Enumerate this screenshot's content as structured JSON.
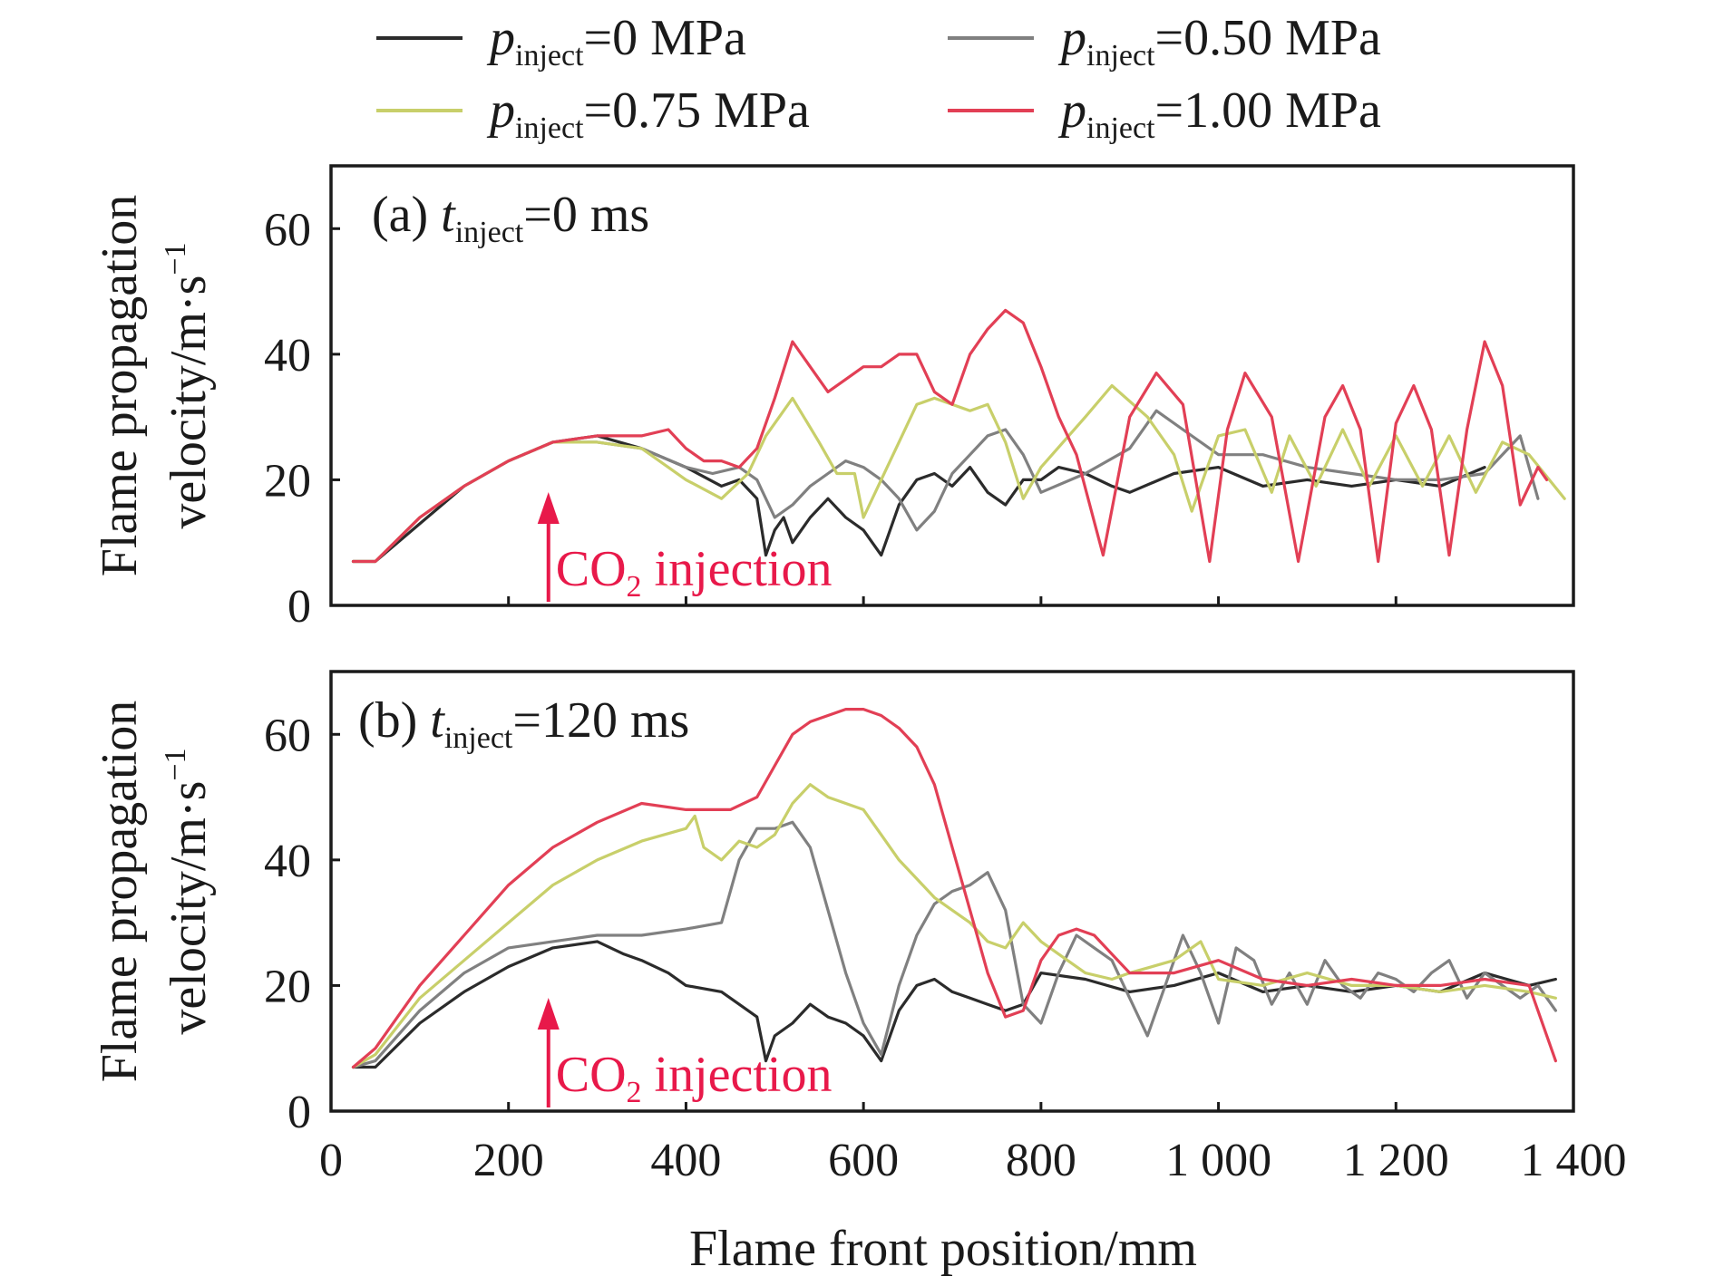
{
  "chart_data": {
    "type": "line",
    "xlabel": "Flame front position/mm",
    "ylabel_line1": "Flame propagation",
    "ylabel_line2": "velocity/m·s",
    "ylabel_exp": "−1",
    "xlim": [
      0,
      1400
    ],
    "ylim": [
      0,
      70
    ],
    "xticks": [
      0,
      200,
      400,
      600,
      800,
      1000,
      1200,
      1400
    ],
    "xtick_labels": [
      "0",
      "200",
      "400",
      "600",
      "800",
      "1 000",
      "1 200",
      "1 400"
    ],
    "yticks": [
      0,
      20,
      40,
      60
    ],
    "ytick_labels": [
      "0",
      "20",
      "40",
      "60"
    ],
    "legend_placement": "top",
    "grid": false,
    "legend": [
      {
        "p": "p",
        "sub": "inject",
        "rest": "=0 MPa",
        "color": "#2b2b2b"
      },
      {
        "p": "p",
        "sub": "inject",
        "rest": "=0.50 MPa",
        "color": "#808080"
      },
      {
        "p": "p",
        "sub": "inject",
        "rest": "=0.75 MPa",
        "color": "#c8cf6a"
      },
      {
        "p": "p",
        "sub": "inject",
        "rest": "=1.00 MPa",
        "color": "#e23f55"
      }
    ],
    "annotation": {
      "text": "CO",
      "sub": "2",
      "rest": " injection",
      "x": 245,
      "color": "#e8194a"
    },
    "panels": [
      {
        "label": "(a) ",
        "label_t": "t",
        "label_sub": "inject",
        "label_rest": "=0 ms",
        "series": [
          {
            "name": "pinject=0 MPa",
            "color": "#2b2b2b",
            "x": [
              25,
              50,
              100,
              150,
              200,
              250,
              300,
              350,
              400,
              440,
              460,
              480,
              490,
              500,
              510,
              520,
              540,
              560,
              580,
              600,
              620,
              640,
              660,
              680,
              700,
              720,
              740,
              760,
              780,
              800,
              820,
              850,
              880,
              900,
              950,
              1000,
              1050,
              1100,
              1150,
              1200,
              1250,
              1300
            ],
            "y": [
              7,
              7,
              13,
              19,
              23,
              26,
              27,
              25,
              22,
              19,
              20,
              17,
              8,
              12,
              14,
              10,
              14,
              17,
              14,
              12,
              8,
              16,
              20,
              21,
              19,
              22,
              18,
              16,
              20,
              20,
              22,
              21,
              19,
              18,
              21,
              22,
              19,
              20,
              19,
              20,
              19,
              22
            ]
          },
          {
            "name": "pinject=0.50 MPa",
            "color": "#808080",
            "x": [
              25,
              50,
              100,
              150,
              200,
              250,
              300,
              350,
              400,
              430,
              460,
              480,
              500,
              520,
              540,
              560,
              580,
              600,
              620,
              640,
              660,
              680,
              700,
              720,
              740,
              760,
              780,
              800,
              850,
              900,
              930,
              960,
              1000,
              1050,
              1100,
              1150,
              1200,
              1250,
              1300,
              1340,
              1360
            ],
            "y": [
              7,
              7,
              14,
              19,
              23,
              26,
              26,
              25,
              22,
              21,
              22,
              20,
              14,
              16,
              19,
              21,
              23,
              22,
              20,
              17,
              12,
              15,
              21,
              24,
              27,
              28,
              24,
              18,
              21,
              25,
              31,
              28,
              24,
              24,
              22,
              21,
              20,
              20,
              21,
              27,
              17
            ]
          },
          {
            "name": "pinject=0.75 MPa",
            "color": "#c8cf6a",
            "x": [
              25,
              50,
              100,
              150,
              200,
              250,
              300,
              350,
              400,
              440,
              470,
              490,
              520,
              550,
              570,
              590,
              600,
              620,
              640,
              660,
              680,
              700,
              720,
              740,
              760,
              780,
              800,
              850,
              880,
              920,
              950,
              970,
              1000,
              1030,
              1060,
              1080,
              1110,
              1140,
              1170,
              1200,
              1230,
              1260,
              1290,
              1320,
              1350,
              1390
            ],
            "y": [
              7,
              7,
              14,
              19,
              23,
              26,
              26,
              25,
              20,
              17,
              21,
              27,
              33,
              26,
              21,
              21,
              14,
              20,
              26,
              32,
              33,
              32,
              31,
              32,
              26,
              17,
              22,
              30,
              35,
              30,
              24,
              15,
              27,
              28,
              18,
              27,
              19,
              28,
              19,
              27,
              19,
              27,
              18,
              26,
              24,
              17
            ]
          },
          {
            "name": "pinject=1.00 MPa",
            "color": "#e23f55",
            "x": [
              25,
              50,
              100,
              150,
              200,
              250,
              300,
              350,
              380,
              400,
              420,
              440,
              460,
              480,
              500,
              520,
              540,
              560,
              580,
              600,
              620,
              640,
              660,
              680,
              700,
              720,
              740,
              760,
              780,
              800,
              820,
              840,
              870,
              900,
              930,
              960,
              990,
              1010,
              1030,
              1060,
              1090,
              1120,
              1140,
              1160,
              1180,
              1200,
              1220,
              1240,
              1260,
              1280,
              1300,
              1320,
              1340,
              1360,
              1370
            ],
            "y": [
              7,
              7,
              14,
              19,
              23,
              26,
              27,
              27,
              28,
              25,
              23,
              23,
              22,
              25,
              33,
              42,
              38,
              34,
              36,
              38,
              38,
              40,
              40,
              34,
              32,
              40,
              44,
              47,
              45,
              38,
              30,
              24,
              8,
              30,
              37,
              32,
              7,
              28,
              37,
              30,
              7,
              30,
              35,
              28,
              7,
              29,
              35,
              28,
              8,
              28,
              42,
              35,
              16,
              22,
              20
            ]
          }
        ]
      },
      {
        "label": "(b) ",
        "label_t": "t",
        "label_sub": "inject",
        "label_rest": "=120 ms",
        "series": [
          {
            "name": "pinject=0 MPa",
            "color": "#2b2b2b",
            "x": [
              25,
              50,
              100,
              150,
              200,
              250,
              300,
              330,
              350,
              380,
              400,
              440,
              460,
              480,
              490,
              500,
              520,
              540,
              560,
              580,
              600,
              620,
              640,
              660,
              680,
              700,
              720,
              740,
              760,
              780,
              800,
              850,
              900,
              950,
              1000,
              1050,
              1100,
              1150,
              1200,
              1250,
              1300,
              1350,
              1380
            ],
            "y": [
              7,
              7,
              14,
              19,
              23,
              26,
              27,
              25,
              24,
              22,
              20,
              19,
              17,
              15,
              8,
              12,
              14,
              17,
              15,
              14,
              12,
              8,
              16,
              20,
              21,
              19,
              18,
              17,
              16,
              17,
              22,
              21,
              19,
              20,
              22,
              19,
              20,
              19,
              20,
              19,
              22,
              20,
              21
            ]
          },
          {
            "name": "pinject=0.50 MPa",
            "color": "#808080",
            "x": [
              25,
              50,
              100,
              150,
              200,
              250,
              300,
              350,
              400,
              440,
              460,
              480,
              500,
              520,
              540,
              560,
              580,
              600,
              620,
              640,
              660,
              680,
              700,
              720,
              740,
              760,
              780,
              800,
              820,
              840,
              860,
              880,
              900,
              920,
              940,
              960,
              980,
              1000,
              1020,
              1040,
              1060,
              1080,
              1100,
              1120,
              1140,
              1160,
              1180,
              1200,
              1220,
              1240,
              1260,
              1280,
              1300,
              1320,
              1340,
              1360,
              1380
            ],
            "y": [
              7,
              8,
              16,
              22,
              26,
              27,
              28,
              28,
              29,
              30,
              40,
              45,
              45,
              46,
              42,
              32,
              22,
              14,
              9,
              20,
              28,
              33,
              35,
              36,
              38,
              32,
              17,
              14,
              22,
              28,
              26,
              24,
              18,
              12,
              20,
              28,
              22,
              14,
              26,
              24,
              17,
              22,
              17,
              24,
              20,
              18,
              22,
              21,
              19,
              22,
              24,
              18,
              22,
              20,
              18,
              20,
              16
            ]
          },
          {
            "name": "pinject=0.75 MPa",
            "color": "#c8cf6a",
            "x": [
              25,
              50,
              100,
              150,
              200,
              250,
              300,
              350,
              400,
              410,
              420,
              440,
              460,
              480,
              500,
              520,
              540,
              560,
              580,
              600,
              620,
              640,
              660,
              680,
              700,
              720,
              740,
              760,
              780,
              800,
              820,
              850,
              880,
              900,
              950,
              980,
              1000,
              1050,
              1100,
              1150,
              1200,
              1250,
              1300,
              1350,
              1380
            ],
            "y": [
              7,
              9,
              18,
              24,
              30,
              36,
              40,
              43,
              45,
              47,
              42,
              40,
              43,
              42,
              44,
              49,
              52,
              50,
              49,
              48,
              44,
              40,
              37,
              34,
              32,
              30,
              27,
              26,
              30,
              27,
              25,
              22,
              21,
              22,
              24,
              27,
              21,
              20,
              22,
              20,
              20,
              19,
              20,
              19,
              18
            ]
          },
          {
            "name": "pinject=1.00 MPa",
            "color": "#e23f55",
            "x": [
              25,
              50,
              100,
              150,
              200,
              250,
              300,
              350,
              400,
              450,
              480,
              500,
              520,
              540,
              560,
              580,
              600,
              620,
              640,
              660,
              680,
              700,
              720,
              740,
              760,
              780,
              800,
              820,
              840,
              860,
              880,
              900,
              950,
              1000,
              1050,
              1100,
              1150,
              1200,
              1250,
              1300,
              1350,
              1380
            ],
            "y": [
              7,
              10,
              20,
              28,
              36,
              42,
              46,
              49,
              48,
              48,
              50,
              55,
              60,
              62,
              63,
              64,
              64,
              63,
              61,
              58,
              52,
              42,
              32,
              22,
              15,
              16,
              24,
              28,
              29,
              28,
              25,
              22,
              22,
              24,
              21,
              20,
              21,
              20,
              20,
              21,
              20,
              8
            ]
          }
        ]
      }
    ]
  }
}
